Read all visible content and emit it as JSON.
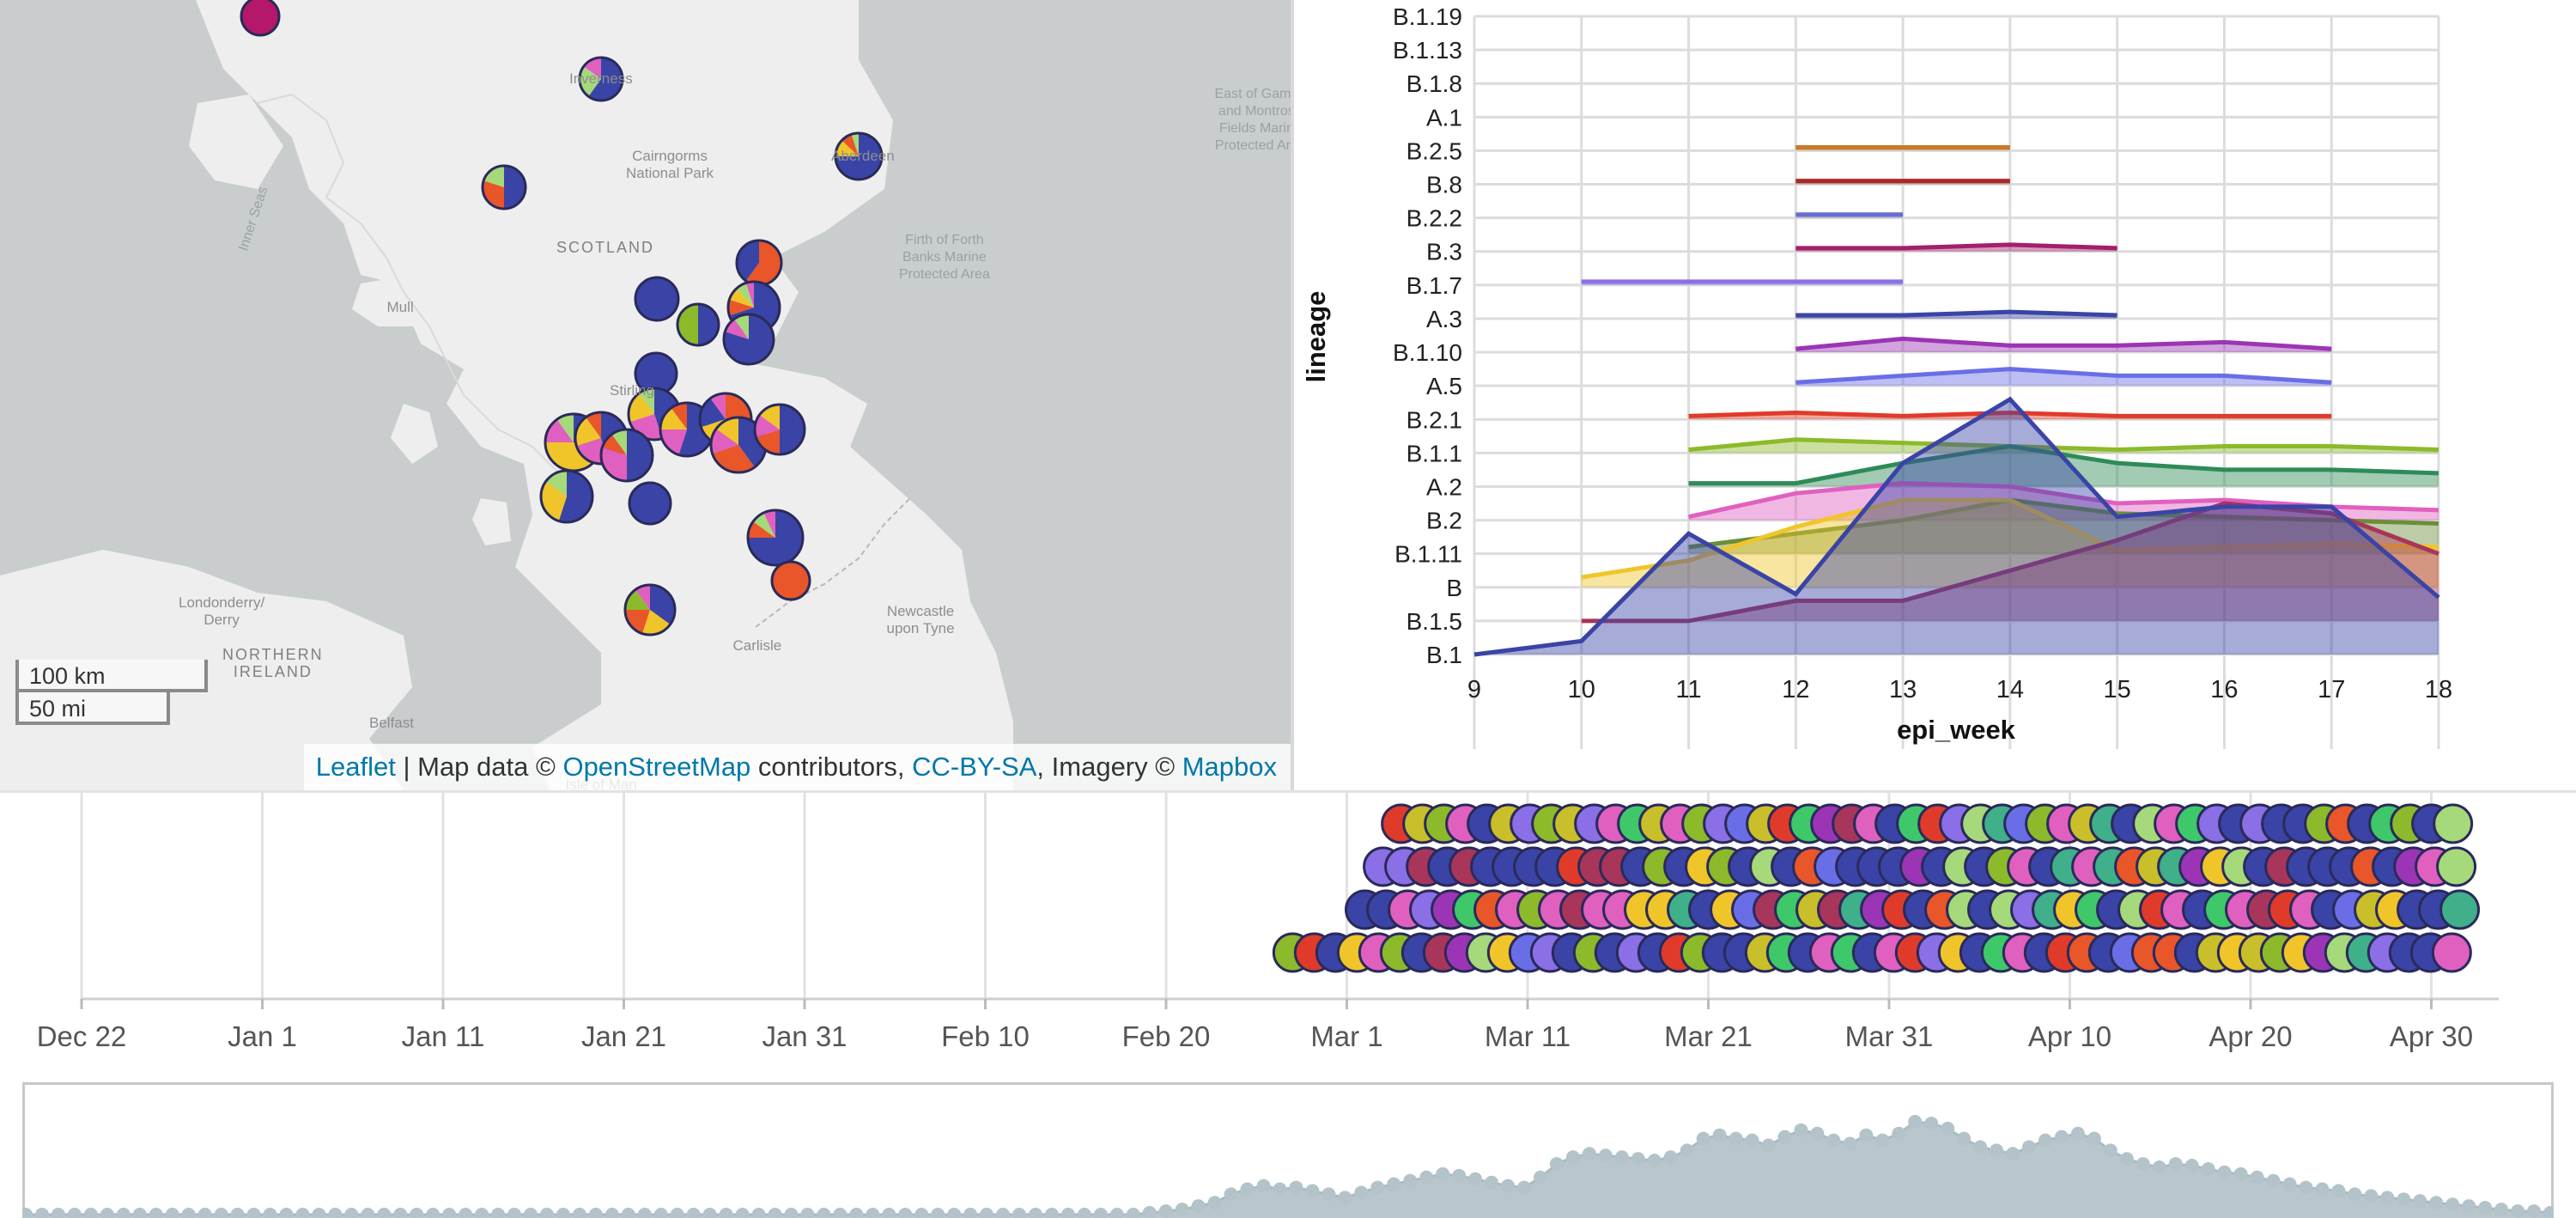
{
  "map": {
    "labels": [
      {
        "id": "inner-seas",
        "text": "Inner Seas",
        "x": 295,
        "y": 255,
        "rot": -72,
        "cls": "sea"
      },
      {
        "id": "inverness",
        "text": "Inverness",
        "x": 700,
        "y": 92,
        "rot": 0,
        "cls": ""
      },
      {
        "id": "cairngorms",
        "text": "Cairngorms\nNational Park",
        "x": 780,
        "y": 192,
        "rot": 0,
        "cls": ""
      },
      {
        "id": "scotland",
        "text": "SCOTLAND",
        "x": 705,
        "y": 288,
        "rot": 0,
        "cls": "country"
      },
      {
        "id": "aberdeen",
        "text": "Aberdeen",
        "x": 1005,
        "y": 182,
        "rot": 0,
        "cls": ""
      },
      {
        "id": "east-of-gamrie",
        "text": "East of Gamrie\nand Montrose\nFields Marine\nProtected Area",
        "x": 1468,
        "y": 140,
        "rot": 0,
        "cls": "sea"
      },
      {
        "id": "firth-of-forth",
        "text": "Firth of Forth\nBanks Marine\nProtected Area",
        "x": 1100,
        "y": 300,
        "rot": 0,
        "cls": "sea"
      },
      {
        "id": "mull",
        "text": "Mull",
        "x": 466,
        "y": 358,
        "rot": 0,
        "cls": ""
      },
      {
        "id": "stirling",
        "text": "Stirling",
        "x": 736,
        "y": 455,
        "rot": 0,
        "cls": ""
      },
      {
        "id": "londonderry",
        "text": "Londonderry/\nDerry",
        "x": 258,
        "y": 712,
        "rot": 0,
        "cls": ""
      },
      {
        "id": "northern-ireland",
        "text": "NORTHERN\nIRELAND",
        "x": 318,
        "y": 772,
        "rot": 0,
        "cls": "country"
      },
      {
        "id": "belfast",
        "text": "Belfast",
        "x": 456,
        "y": 842,
        "rot": 0,
        "cls": ""
      },
      {
        "id": "carlisle",
        "text": "Carlisle",
        "x": 882,
        "y": 752,
        "rot": 0,
        "cls": ""
      },
      {
        "id": "newcastle",
        "text": "Newcastle\nupon Tyne",
        "x": 1072,
        "y": 722,
        "rot": 0,
        "cls": ""
      },
      {
        "id": "isle-of-man",
        "text": "Isle of Man",
        "x": 700,
        "y": 914,
        "rot": 0,
        "cls": ""
      }
    ],
    "scale": {
      "km": "100 km",
      "mi": "50 mi"
    },
    "attribution": {
      "leaflet": "Leaflet",
      "sep1": " | Map data © ",
      "osm": "OpenStreetMap",
      "sep2": " contributors, ",
      "ccbysa": "CC-BY-SA",
      "sep3": ", Imagery © ",
      "mapbox": "Mapbox"
    },
    "pies": [
      {
        "id": "pie-orkney",
        "cx": 303,
        "cy": 19,
        "r": 22,
        "s": [
          [
            "#b5176b",
            1
          ]
        ]
      },
      {
        "id": "pie-inverness",
        "cx": 700,
        "cy": 92,
        "r": 25,
        "s": [
          [
            "#3a44a6",
            0.6
          ],
          [
            "#a6d97a",
            0.25
          ],
          [
            "#e060c0",
            0.15
          ]
        ]
      },
      {
        "id": "pie-fortwilliam",
        "cx": 587,
        "cy": 218,
        "r": 25,
        "s": [
          [
            "#3a44a6",
            0.5
          ],
          [
            "#e8562a",
            0.3
          ],
          [
            "#a6d97a",
            0.2
          ]
        ]
      },
      {
        "id": "pie-aberdeen",
        "cx": 1000,
        "cy": 182,
        "r": 27,
        "s": [
          [
            "#3a44a6",
            0.75
          ],
          [
            "#f0c52a",
            0.12
          ],
          [
            "#e8562a",
            0.08
          ],
          [
            "#a6d97a",
            0.05
          ]
        ]
      },
      {
        "id": "pie-perth",
        "cx": 765,
        "cy": 348,
        "r": 25,
        "s": [
          [
            "#3a44a6",
            1
          ]
        ]
      },
      {
        "id": "pie-perth2",
        "cx": 813,
        "cy": 378,
        "r": 24,
        "s": [
          [
            "#3a44a6",
            0.5
          ],
          [
            "#8cba2a",
            0.5
          ]
        ]
      },
      {
        "id": "pie-dundee-a",
        "cx": 884,
        "cy": 306,
        "r": 26,
        "s": [
          [
            "#e8562a",
            0.6
          ],
          [
            "#3a44a6",
            0.4
          ]
        ]
      },
      {
        "id": "pie-dundee",
        "cx": 878,
        "cy": 358,
        "r": 30,
        "s": [
          [
            "#3a44a6",
            0.7
          ],
          [
            "#e8562a",
            0.1
          ],
          [
            "#f0c52a",
            0.08
          ],
          [
            "#a6d97a",
            0.07
          ],
          [
            "#e060c0",
            0.05
          ]
        ]
      },
      {
        "id": "pie-fife",
        "cx": 872,
        "cy": 395,
        "r": 29,
        "s": [
          [
            "#3a44a6",
            0.8
          ],
          [
            "#e060c0",
            0.1
          ],
          [
            "#a6d97a",
            0.1
          ]
        ]
      },
      {
        "id": "pie-stirling",
        "cx": 764,
        "cy": 435,
        "r": 24,
        "s": [
          [
            "#3a44a6",
            1
          ]
        ]
      },
      {
        "id": "pie-falkirk",
        "cx": 762,
        "cy": 482,
        "r": 30,
        "s": [
          [
            "#3a44a6",
            0.45
          ],
          [
            "#e060c0",
            0.25
          ],
          [
            "#f0c52a",
            0.2
          ],
          [
            "#a6d97a",
            0.1
          ]
        ]
      },
      {
        "id": "pie-livingston",
        "cx": 800,
        "cy": 500,
        "r": 31,
        "s": [
          [
            "#3a44a6",
            0.55
          ],
          [
            "#e060c0",
            0.2
          ],
          [
            "#f0c52a",
            0.15
          ],
          [
            "#e8562a",
            0.1
          ]
        ]
      },
      {
        "id": "pie-edin-a",
        "cx": 845,
        "cy": 488,
        "r": 30,
        "s": [
          [
            "#e8562a",
            0.5
          ],
          [
            "#f0c52a",
            0.2
          ],
          [
            "#3a44a6",
            0.2
          ],
          [
            "#e060c0",
            0.1
          ]
        ]
      },
      {
        "id": "pie-edinburgh",
        "cx": 860,
        "cy": 518,
        "r": 32,
        "s": [
          [
            "#3a44a6",
            0.4
          ],
          [
            "#e8562a",
            0.3
          ],
          [
            "#e060c0",
            0.15
          ],
          [
            "#f0c52a",
            0.15
          ]
        ]
      },
      {
        "id": "pie-edin-c",
        "cx": 908,
        "cy": 500,
        "r": 29,
        "s": [
          [
            "#3a44a6",
            0.5
          ],
          [
            "#e8562a",
            0.2
          ],
          [
            "#e060c0",
            0.15
          ],
          [
            "#f0c52a",
            0.15
          ]
        ]
      },
      {
        "id": "pie-glasgow-w",
        "cx": 668,
        "cy": 515,
        "r": 33,
        "s": [
          [
            "#3a44a6",
            0.35
          ],
          [
            "#f0c52a",
            0.4
          ],
          [
            "#e060c0",
            0.15
          ],
          [
            "#a6d97a",
            0.1
          ]
        ]
      },
      {
        "id": "pie-glasgow",
        "cx": 700,
        "cy": 510,
        "r": 30,
        "s": [
          [
            "#3a44a6",
            0.45
          ],
          [
            "#e060c0",
            0.25
          ],
          [
            "#f0c52a",
            0.2
          ],
          [
            "#e8562a",
            0.1
          ]
        ]
      },
      {
        "id": "pie-glasgow-s",
        "cx": 730,
        "cy": 530,
        "r": 30,
        "s": [
          [
            "#3a44a6",
            0.5
          ],
          [
            "#e060c0",
            0.3
          ],
          [
            "#e8562a",
            0.1
          ],
          [
            "#a6d97a",
            0.1
          ]
        ]
      },
      {
        "id": "pie-ayr",
        "cx": 660,
        "cy": 578,
        "r": 30,
        "s": [
          [
            "#3a44a6",
            0.55
          ],
          [
            "#f0c52a",
            0.3
          ],
          [
            "#a6d97a",
            0.15
          ]
        ]
      },
      {
        "id": "pie-lanark",
        "cx": 757,
        "cy": 586,
        "r": 24,
        "s": [
          [
            "#3a44a6",
            1
          ]
        ]
      },
      {
        "id": "pie-borders",
        "cx": 903,
        "cy": 626,
        "r": 32,
        "s": [
          [
            "#3a44a6",
            0.75
          ],
          [
            "#e8562a",
            0.1
          ],
          [
            "#a6d97a",
            0.08
          ],
          [
            "#e060c0",
            0.07
          ]
        ]
      },
      {
        "id": "pie-borders2",
        "cx": 921,
        "cy": 676,
        "r": 22,
        "s": [
          [
            "#e8562a",
            1
          ]
        ]
      },
      {
        "id": "pie-dumfries",
        "cx": 757,
        "cy": 710,
        "r": 29,
        "s": [
          [
            "#3a44a6",
            0.35
          ],
          [
            "#f0c52a",
            0.2
          ],
          [
            "#e8562a",
            0.2
          ],
          [
            "#8cba2a",
            0.15
          ],
          [
            "#e060c0",
            0.1
          ]
        ]
      }
    ]
  },
  "chart_data": [
    {
      "type": "area",
      "xlabel": "epi_week",
      "ylabel": "lineage",
      "x_ticks": [
        9,
        10,
        11,
        12,
        13,
        14,
        15,
        16,
        17,
        18
      ],
      "categories": [
        "B.1",
        "B.1.5",
        "B",
        "B.1.11",
        "B.2",
        "A.2",
        "B.1.1",
        "B.2.1",
        "A.5",
        "B.1.10",
        "A.3",
        "B.1.7",
        "B.3",
        "B.2.2",
        "B.8",
        "B.2.5",
        "A.1",
        "B.1.8",
        "B.1.13",
        "B.1.19"
      ],
      "series": [
        {
          "color": "#3a44a6",
          "x": [
            9,
            10,
            11,
            12,
            13,
            14,
            15,
            16,
            17,
            18
          ],
          "y": [
            0,
            0.4,
            3.6,
            1.8,
            5.7,
            7.6,
            4.1,
            4.4,
            4.4,
            1.7
          ]
        },
        {
          "color": "#a8355a",
          "x": [
            10,
            11,
            12,
            13,
            14,
            15,
            16,
            17,
            18
          ],
          "y": [
            0,
            0,
            0.6,
            0.6,
            1.5,
            2.4,
            3.5,
            3.2,
            2.0
          ]
        },
        {
          "color": "#f0c52a",
          "x": [
            10,
            11,
            12,
            13,
            14,
            15,
            16,
            17,
            18
          ],
          "y": [
            0.3,
            0.8,
            1.8,
            2.6,
            2.6,
            1.1,
            1.2,
            1.3,
            1.2
          ]
        },
        {
          "color": "#6b8e3a",
          "x": [
            11,
            12,
            13,
            14,
            15,
            16,
            17,
            18
          ],
          "y": [
            0.2,
            0.6,
            1.0,
            1.6,
            1.2,
            1.1,
            1.0,
            0.9
          ]
        },
        {
          "color": "#e060c0",
          "x": [
            11,
            12,
            13,
            14,
            15,
            16,
            17,
            18
          ],
          "y": [
            0.1,
            0.8,
            1.1,
            1.0,
            0.5,
            0.6,
            0.4,
            0.3
          ]
        },
        {
          "color": "#2e8b57",
          "x": [
            11,
            12,
            13,
            14,
            15,
            16,
            17,
            18
          ],
          "y": [
            0.1,
            0.1,
            0.7,
            1.2,
            0.7,
            0.5,
            0.5,
            0.4
          ]
        },
        {
          "color": "#8cba2a",
          "x": [
            11,
            12,
            13,
            14,
            15,
            16,
            17,
            18
          ],
          "y": [
            0.1,
            0.4,
            0.3,
            0.2,
            0.1,
            0.2,
            0.2,
            0.1
          ]
        },
        {
          "color": "#e03b2a",
          "x": [
            11,
            12,
            13,
            14,
            15,
            16,
            17
          ],
          "y": [
            0.1,
            0.2,
            0.1,
            0.2,
            0.1,
            0.1,
            0.1
          ]
        },
        {
          "color": "#6a6ee6",
          "x": [
            12,
            13,
            14,
            15,
            16,
            17
          ],
          "y": [
            0.1,
            0.3,
            0.5,
            0.3,
            0.3,
            0.1
          ]
        },
        {
          "color": "#9b35b5",
          "x": [
            12,
            13,
            14,
            15,
            16,
            17
          ],
          "y": [
            0.1,
            0.4,
            0.2,
            0.2,
            0.3,
            0.1
          ]
        },
        {
          "color": "#3a44a6",
          "x": [
            12,
            13,
            14,
            15
          ],
          "y": [
            0.1,
            0.1,
            0.2,
            0.1
          ]
        },
        {
          "color": "#8a6fe6",
          "x": [
            10,
            13
          ],
          "y": [
            0.1,
            0.1
          ]
        },
        {
          "color": "#a31f6b",
          "x": [
            12,
            13,
            14,
            15
          ],
          "y": [
            0.1,
            0.1,
            0.2,
            0.1
          ]
        },
        {
          "color": "#6a6ed0",
          "x": [
            12,
            13
          ],
          "y": [
            0.1,
            0.1
          ]
        },
        {
          "color": "#a82a2a",
          "x": [
            12,
            14
          ],
          "y": [
            0.1,
            0.1
          ]
        },
        {
          "color": "#c87a2a",
          "x": [
            12,
            14
          ],
          "y": [
            0.1,
            0.1
          ]
        },
        {
          "color": "#3a44a6",
          "x": [
            12,
            12
          ],
          "y": [
            0.05,
            0.05
          ]
        },
        {
          "color": "#3fb08a",
          "x": [
            14,
            14
          ],
          "y": [
            0.05,
            0.05
          ]
        },
        {
          "color": "#3fb08a",
          "x": [
            14,
            14
          ],
          "y": [
            0.05,
            0.05
          ]
        },
        {
          "color": "#6a3aa6",
          "x": [
            18,
            18
          ],
          "y": [
            0.05,
            0.05
          ]
        }
      ]
    },
    {
      "type": "scatter",
      "x_ticks": [
        "Dec 22",
        "Jan 1",
        "Jan 11",
        "Jan 21",
        "Jan 31",
        "Feb 10",
        "Feb 20",
        "Mar 1",
        "Mar 11",
        "Mar 21",
        "Mar 31",
        "Apr 10",
        "Apr 20",
        "Apr 30"
      ],
      "palette": [
        "#3a44a6",
        "#3a44a6",
        "#3a44a6",
        "#3a44a6",
        "#f0c52a",
        "#e8562a",
        "#a6d97a",
        "#e060c0",
        "#8cba2a",
        "#e03b2a",
        "#9b35b5",
        "#8a6fe6",
        "#3fb08a",
        "#6a6ee6",
        "#a8355a",
        "#c8bf2a",
        "#3ec86a"
      ],
      "rows": [
        {
          "start": "2020-02-27",
          "end": "2020-05-02"
        },
        {
          "start": "2020-03-02",
          "end": "2020-05-02"
        },
        {
          "start": "2020-03-03",
          "end": "2020-05-02"
        },
        {
          "start": "2020-03-04",
          "end": "2020-05-02"
        }
      ]
    },
    {
      "type": "area",
      "x_range": [
        "2019-12-22",
        "2020-05-04"
      ],
      "values": [
        0,
        0,
        0,
        0,
        0,
        0,
        0,
        0,
        0,
        0,
        0,
        0,
        0,
        0,
        0,
        0,
        0,
        0,
        0,
        0,
        0,
        0,
        0,
        0,
        0,
        0,
        0,
        0,
        0,
        0,
        0,
        0,
        0,
        0,
        0,
        0,
        0,
        0,
        0,
        0,
        0,
        0,
        0,
        0,
        0,
        0,
        0,
        0,
        0,
        0,
        0,
        0,
        0,
        0,
        0,
        0,
        0,
        0,
        0,
        0,
        0,
        0,
        0,
        0,
        0,
        0,
        0,
        0,
        0,
        1,
        2,
        3,
        5,
        7,
        12,
        15,
        17,
        15,
        16,
        14,
        12,
        10,
        13,
        16,
        18,
        20,
        22,
        24,
        23,
        21,
        19,
        17,
        16,
        22,
        30,
        34,
        36,
        35,
        34,
        33,
        32,
        34,
        38,
        45,
        47,
        45,
        44,
        41,
        46,
        50,
        48,
        44,
        42,
        47,
        44,
        48,
        55,
        54,
        51,
        45,
        40,
        38,
        36,
        40,
        44,
        46,
        48,
        45,
        38,
        33,
        30,
        28,
        30,
        29,
        27,
        25,
        24,
        22,
        20,
        18,
        16,
        15,
        14,
        12,
        11,
        10,
        9,
        8,
        7,
        6,
        5,
        4,
        3,
        2,
        2,
        1
      ]
    }
  ]
}
